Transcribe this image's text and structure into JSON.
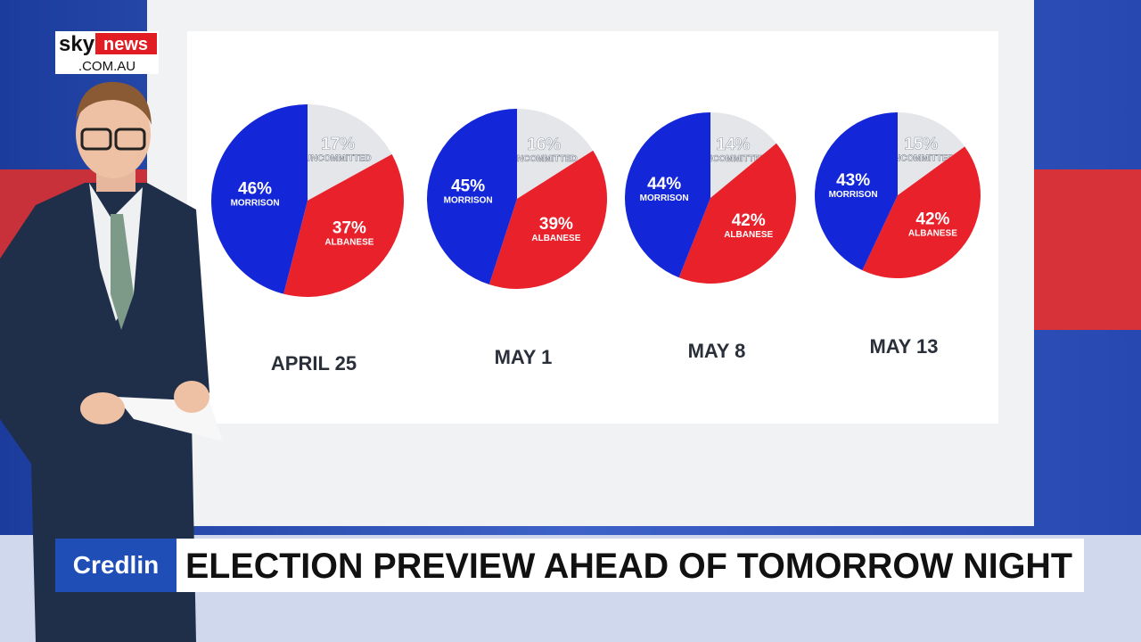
{
  "logo": {
    "brand": "sky",
    "name": "news",
    "domain": ".COM.AU"
  },
  "show": "Credlin",
  "headline": "ELECTION PREVIEW AHEAD OF TOMORROW NIGHT",
  "chart_data": [
    {
      "type": "pie",
      "title": "APRIL 25",
      "categories": [
        "UNCOMMITTED",
        "ALBANESE",
        "MORRISON"
      ],
      "values": [
        17,
        37,
        46
      ],
      "value_labels": [
        "17%",
        "37%",
        "46%"
      ],
      "colors": [
        "#e4e6ea",
        "#e8212b",
        "#1427d8"
      ]
    },
    {
      "type": "pie",
      "title": "MAY 1",
      "categories": [
        "UNCOMMITTED",
        "ALBANESE",
        "MORRISON"
      ],
      "values": [
        16,
        39,
        45
      ],
      "value_labels": [
        "16%",
        "39%",
        "45%"
      ],
      "colors": [
        "#e4e6ea",
        "#e8212b",
        "#1427d8"
      ]
    },
    {
      "type": "pie",
      "title": "MAY 8",
      "categories": [
        "UNCOMMITTED",
        "ALBANESE",
        "MORRISON"
      ],
      "values": [
        14,
        42,
        44
      ],
      "value_labels": [
        "14%",
        "42%",
        "44%"
      ],
      "colors": [
        "#e4e6ea",
        "#e8212b",
        "#1427d8"
      ]
    },
    {
      "type": "pie",
      "title": "MAY 13",
      "categories": [
        "UNCOMMITTED",
        "ALBANESE",
        "MORRISON"
      ],
      "values": [
        15,
        42,
        43
      ],
      "value_labels": [
        "15%",
        "42%",
        "43%"
      ],
      "colors": [
        "#e4e6ea",
        "#e8212b",
        "#1427d8"
      ]
    }
  ]
}
